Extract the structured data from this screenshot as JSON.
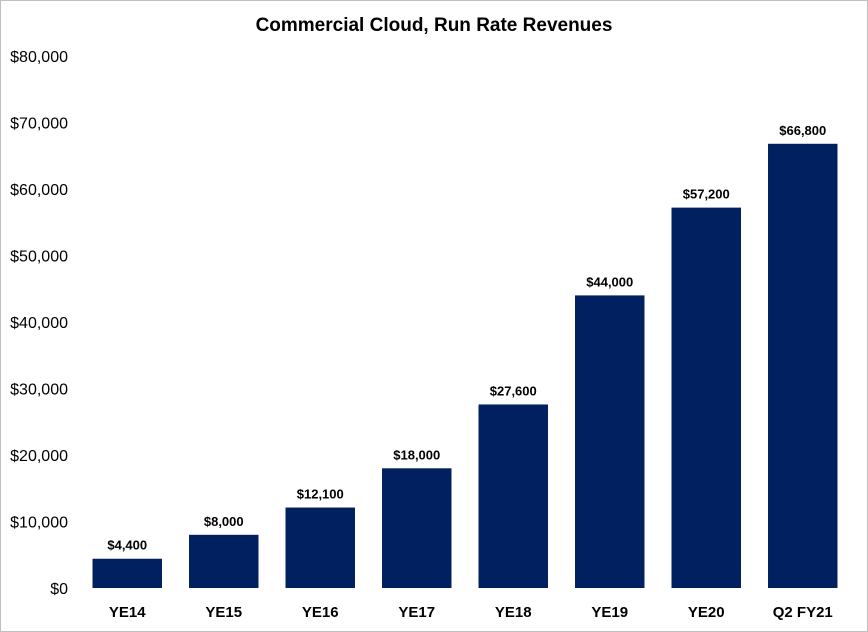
{
  "chart_data": {
    "type": "bar",
    "title": "Commercial Cloud, Run Rate Revenues",
    "xlabel": "",
    "ylabel": "",
    "categories": [
      "YE14",
      "YE15",
      "YE16",
      "YE17",
      "YE18",
      "YE19",
      "YE20",
      "Q2 FY21"
    ],
    "values": [
      4400,
      8000,
      12100,
      18000,
      27600,
      44000,
      57200,
      66800
    ],
    "data_labels": [
      "$4,400",
      "$8,000",
      "$12,100",
      "$18,000",
      "$27,600",
      "$44,000",
      "$57,200",
      "$66,800"
    ],
    "ylim": [
      0,
      80000
    ],
    "y_ticks": [
      0,
      10000,
      20000,
      30000,
      40000,
      50000,
      60000,
      70000,
      80000
    ],
    "y_tick_labels": [
      "$0",
      "$10,000",
      "$20,000",
      "$30,000",
      "$40,000",
      "$50,000",
      "$60,000",
      "$70,000",
      "$80,000"
    ],
    "grid": false,
    "legend": "none",
    "colors": {
      "bar": "#002060",
      "border": "#bfbfbf"
    }
  }
}
